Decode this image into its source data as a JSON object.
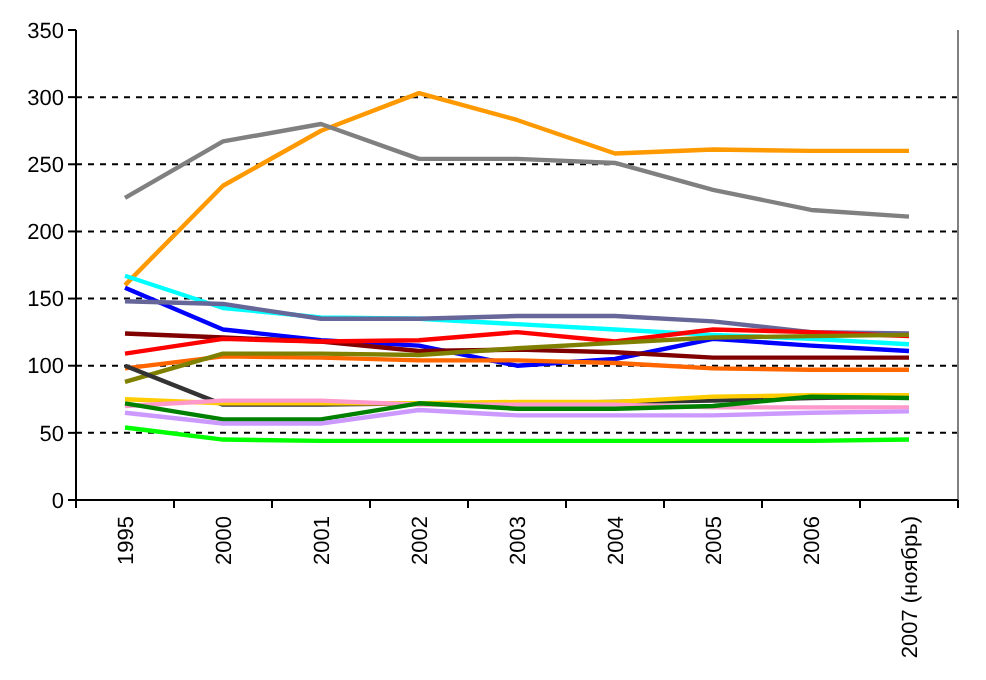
{
  "chart_data": {
    "type": "line",
    "categories": [
      "1995",
      "2000",
      "2001",
      "2002",
      "2003",
      "2004",
      "2005",
      "2006",
      "2007 (ноябрь)"
    ],
    "ylim": [
      0,
      350
    ],
    "yticks": [
      0,
      50,
      100,
      150,
      200,
      250,
      300,
      350
    ],
    "grid": "y",
    "marker": "none",
    "line_style": "solid",
    "series": [
      {
        "color": "#ff9900",
        "values": [
          160,
          234,
          275,
          303,
          283,
          258,
          261,
          260,
          260
        ]
      },
      {
        "color": "#808080",
        "values": [
          225,
          267,
          280,
          254,
          254,
          251,
          231,
          216,
          211
        ]
      },
      {
        "color": "#00ffff",
        "values": [
          167,
          143,
          136,
          135,
          131,
          127,
          123,
          120,
          116
        ]
      },
      {
        "color": "#0000ff",
        "values": [
          158,
          127,
          119,
          115,
          100,
          105,
          120,
          115,
          111
        ]
      },
      {
        "color": "#666699",
        "values": [
          148,
          146,
          135,
          135,
          137,
          137,
          133,
          125,
          124
        ]
      },
      {
        "color": "#800000",
        "values": [
          124,
          121,
          118,
          111,
          112,
          110,
          106,
          106,
          106
        ]
      },
      {
        "color": "#ff0000",
        "values": [
          109,
          120,
          118,
          119,
          125,
          118,
          127,
          125,
          122
        ]
      },
      {
        "color": "#ff6600",
        "values": [
          98,
          107,
          106,
          104,
          104,
          102,
          98,
          97,
          97
        ]
      },
      {
        "color": "#808000",
        "values": [
          88,
          109,
          109,
          108,
          113,
          117,
          121,
          122,
          123
        ]
      },
      {
        "color": "#333333",
        "values": [
          100,
          71,
          71,
          72,
          72,
          73,
          74,
          76,
          77
        ]
      },
      {
        "color": "#ffcc00",
        "values": [
          75,
          72,
          72,
          72,
          73,
          73,
          77,
          78,
          78
        ]
      },
      {
        "color": "#ff99cc",
        "values": [
          70,
          74,
          74,
          71,
          71,
          71,
          69,
          69,
          69
        ]
      },
      {
        "color": "#008000",
        "values": [
          72,
          60,
          60,
          72,
          68,
          68,
          70,
          77,
          76
        ]
      },
      {
        "color": "#cc99ff",
        "values": [
          65,
          57,
          57,
          67,
          63,
          63,
          63,
          65,
          66
        ]
      },
      {
        "color": "#00ff00",
        "values": [
          54,
          45,
          44,
          44,
          44,
          44,
          44,
          44,
          45
        ]
      }
    ]
  }
}
